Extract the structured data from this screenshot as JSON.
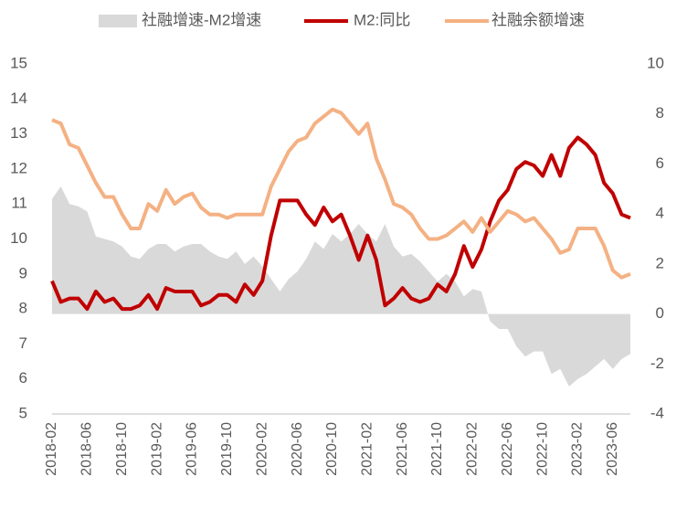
{
  "chart_data": {
    "type": "line",
    "categories": [
      "2018-02",
      null,
      null,
      null,
      "2018-06",
      null,
      null,
      null,
      "2018-10",
      null,
      null,
      null,
      "2019-02",
      null,
      null,
      null,
      "2019-06",
      null,
      null,
      null,
      "2019-10",
      null,
      null,
      null,
      "2020-02",
      null,
      null,
      null,
      "2020-06",
      null,
      null,
      null,
      "2020-10",
      null,
      null,
      null,
      "2021-02",
      null,
      null,
      null,
      "2021-06",
      null,
      null,
      null,
      "2021-10",
      null,
      null,
      null,
      "2022-02",
      null,
      null,
      null,
      "2022-06",
      null,
      null,
      null,
      "2022-10",
      null,
      null,
      null,
      "2023-02",
      null,
      null,
      null,
      "2023-06",
      null,
      null
    ],
    "series": [
      {
        "name": "社融增速-M2增速",
        "color": "#d9d9d9",
        "axis": "y2",
        "kind": "area",
        "values": [
          4.6,
          5.1,
          4.4,
          4.3,
          4.1,
          3.1,
          3.0,
          2.9,
          2.7,
          2.3,
          2.2,
          2.6,
          2.8,
          2.8,
          2.5,
          2.7,
          2.8,
          2.8,
          2.5,
          2.3,
          2.2,
          2.5,
          2.0,
          2.3,
          1.9,
          1.4,
          0.9,
          1.4,
          1.7,
          2.2,
          2.9,
          2.6,
          3.2,
          2.9,
          3.2,
          3.6,
          3.2,
          2.9,
          3.6,
          2.7,
          2.3,
          2.4,
          2.1,
          1.7,
          1.3,
          1.6,
          1.3,
          0.7,
          1.0,
          0.9,
          -0.3,
          -0.6,
          -0.6,
          -1.3,
          -1.7,
          -1.5,
          -1.5,
          -2.4,
          -2.2,
          -2.9,
          -2.6,
          -2.4,
          -2.1,
          -1.8,
          -2.2,
          -1.8,
          -1.6
        ]
      },
      {
        "name": "M2:同比",
        "color": "#c00000",
        "kind": "line",
        "values": [
          8.8,
          8.2,
          8.3,
          8.3,
          8.0,
          8.5,
          8.2,
          8.3,
          8.0,
          8.0,
          8.1,
          8.4,
          8.0,
          8.6,
          8.5,
          8.5,
          8.5,
          8.1,
          8.2,
          8.4,
          8.4,
          8.2,
          8.7,
          8.4,
          8.8,
          10.1,
          11.1,
          11.1,
          11.1,
          10.7,
          10.4,
          10.9,
          10.5,
          10.7,
          10.1,
          9.4,
          10.1,
          9.4,
          8.1,
          8.3,
          8.6,
          8.3,
          8.2,
          8.3,
          8.7,
          8.5,
          9.0,
          9.8,
          9.2,
          9.7,
          10.5,
          11.1,
          11.4,
          12.0,
          12.2,
          12.1,
          11.8,
          12.4,
          11.8,
          12.6,
          12.9,
          12.7,
          12.4,
          11.6,
          11.3,
          10.7,
          10.6
        ]
      },
      {
        "name": "社融余额增速",
        "color": "#f4b183",
        "kind": "line",
        "values": [
          13.4,
          13.3,
          12.7,
          12.6,
          12.1,
          11.6,
          11.2,
          11.2,
          10.7,
          10.3,
          10.3,
          11.0,
          10.8,
          11.4,
          11.0,
          11.2,
          11.3,
          10.9,
          10.7,
          10.7,
          10.6,
          10.7,
          10.7,
          10.7,
          10.7,
          11.5,
          12.0,
          12.5,
          12.8,
          12.9,
          13.3,
          13.5,
          13.7,
          13.6,
          13.3,
          13.0,
          13.3,
          12.3,
          11.7,
          11.0,
          10.9,
          10.7,
          10.3,
          10.0,
          10.0,
          10.1,
          10.3,
          10.5,
          10.2,
          10.6,
          10.2,
          10.5,
          10.8,
          10.7,
          10.5,
          10.6,
          10.3,
          10.0,
          9.6,
          9.7,
          10.3,
          10.3,
          10.3,
          9.8,
          9.1,
          8.9,
          9.0
        ]
      }
    ],
    "ylim": [
      5,
      15
    ],
    "yticks": [
      5,
      6,
      7,
      8,
      9,
      10,
      11,
      12,
      13,
      14,
      15
    ],
    "y2lim": [
      -4,
      10
    ],
    "y2ticks": [
      -4,
      -2,
      0,
      2,
      4,
      6,
      8,
      10
    ],
    "legend": "top"
  }
}
